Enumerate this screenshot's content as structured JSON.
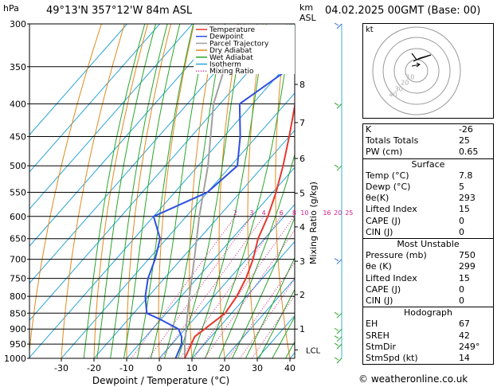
{
  "header": {
    "hpa_label": "hPa",
    "location": "49°13'N  357°12'W  84m  ASL",
    "km_label": "km",
    "asl_label": "ASL",
    "datetime": "04.02.2025  00GMT  (Base: 00)"
  },
  "chart_data": {
    "type": "skew-t",
    "xlabel": "Dewpoint / Temperature (°C)",
    "ylabel_right": "Mixing Ratio (g/kg)",
    "pressure_levels": [
      300,
      350,
      400,
      450,
      500,
      550,
      600,
      650,
      700,
      750,
      800,
      850,
      900,
      950,
      1000
    ],
    "temp_ticks": [
      -30,
      -20,
      -10,
      0,
      10,
      20,
      30,
      40
    ],
    "km_ticks": [
      {
        "km": "1",
        "p": 900
      },
      {
        "km": "2",
        "p": 795
      },
      {
        "km": "3",
        "p": 705
      },
      {
        "km": "4",
        "p": 623
      },
      {
        "km": "5",
        "p": 552
      },
      {
        "km": "6",
        "p": 487
      },
      {
        "km": "7",
        "p": 428
      },
      {
        "km": "8",
        "p": 373
      }
    ],
    "lcl": {
      "label": "LCL",
      "p": 970
    },
    "mixing_ratio_labels": [
      "2",
      "3",
      "4",
      "6",
      "8",
      "10",
      "16",
      "20",
      "25"
    ],
    "mixing_ratios": [
      2,
      3,
      4,
      6,
      8,
      10,
      16,
      20,
      25
    ],
    "legend": {
      "placement": "top-left",
      "entries": [
        {
          "name": "Temperature",
          "color": "#e8372e"
        },
        {
          "name": "Dewpoint",
          "color": "#2f4fe0"
        },
        {
          "name": "Parcel Trajectory",
          "color": "#a0a0a0"
        },
        {
          "name": "Dry Adiabat",
          "color": "#e08a1e"
        },
        {
          "name": "Wet Adiabat",
          "color": "#2aa52a"
        },
        {
          "name": "Isotherm",
          "color": "#2aa4d8"
        },
        {
          "name": "Mixing Ratio",
          "color": "#d0208a"
        }
      ]
    },
    "temperature": [
      [
        1000,
        7.8
      ],
      [
        950,
        6
      ],
      [
        925,
        5
      ],
      [
        900,
        6
      ],
      [
        850,
        8
      ],
      [
        800,
        7
      ],
      [
        750,
        5
      ],
      [
        700,
        2
      ],
      [
        650,
        -2
      ],
      [
        600,
        -5
      ],
      [
        550,
        -9
      ],
      [
        500,
        -14
      ],
      [
        450,
        -20
      ],
      [
        400,
        -27
      ],
      [
        350,
        -35
      ],
      [
        300,
        -43
      ]
    ],
    "dewpoint": [
      [
        1000,
        5
      ],
      [
        950,
        3
      ],
      [
        925,
        1
      ],
      [
        900,
        -2
      ],
      [
        870,
        -10
      ],
      [
        850,
        -16
      ],
      [
        800,
        -21
      ],
      [
        750,
        -25
      ],
      [
        700,
        -28
      ],
      [
        650,
        -32
      ],
      [
        600,
        -40
      ],
      [
        550,
        -30
      ],
      [
        500,
        -28
      ],
      [
        450,
        -35
      ],
      [
        400,
        -44
      ],
      [
        350,
        -38
      ],
      [
        300,
        -40
      ]
    ],
    "parcel": [
      [
        1000,
        7.8
      ],
      [
        970,
        5.5
      ],
      [
        950,
        4
      ],
      [
        900,
        0.3
      ],
      [
        850,
        -3.5
      ],
      [
        800,
        -7.5
      ],
      [
        700,
        -16
      ],
      [
        600,
        -26
      ],
      [
        500,
        -37
      ],
      [
        400,
        -52
      ],
      [
        300,
        -66
      ]
    ]
  },
  "hodograph": {
    "unit_label": "kt",
    "ring_labels": [
      "40",
      "30",
      "20",
      "10"
    ]
  },
  "indices": {
    "k_label": "K",
    "k_value": "-26",
    "tt_label": "Totals Totals",
    "tt_value": "25",
    "pw_label": "PW (cm)",
    "pw_value": "0.65"
  },
  "surface": {
    "title": "Surface",
    "rows": [
      {
        "label": "Temp (°C)",
        "value": "7.8"
      },
      {
        "label": "Dewp (°C)",
        "value": "5"
      },
      {
        "label": "θe(K)",
        "value": "293"
      },
      {
        "label": "Lifted Index",
        "value": "15"
      },
      {
        "label": "CAPE (J)",
        "value": "0"
      },
      {
        "label": "CIN (J)",
        "value": "0"
      }
    ]
  },
  "most_unstable": {
    "title": "Most Unstable",
    "rows": [
      {
        "label": "Pressure (mb)",
        "value": "750"
      },
      {
        "label": "θe (K)",
        "value": "299"
      },
      {
        "label": "Lifted Index",
        "value": "15"
      },
      {
        "label": "CAPE (J)",
        "value": "0"
      },
      {
        "label": "CIN (J)",
        "value": "0"
      }
    ]
  },
  "hodograph_params": {
    "title": "Hodograph",
    "rows": [
      {
        "label": "EH",
        "value": "67"
      },
      {
        "label": "SREH",
        "value": "42"
      },
      {
        "label": "StmDir",
        "value": "249°"
      },
      {
        "label": "StmSpd (kt)",
        "value": "14"
      }
    ]
  },
  "footer": {
    "copyright": "© weatheronline.co.uk"
  }
}
